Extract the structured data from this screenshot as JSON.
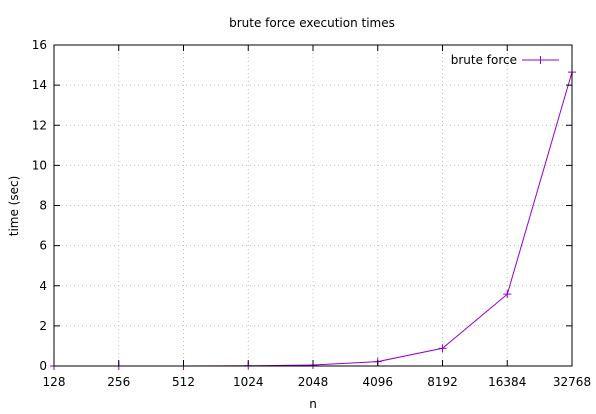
{
  "chart_data": {
    "type": "line",
    "title": "brute force execution times",
    "xlabel": "n",
    "ylabel": "time (sec)",
    "x_scale": "log2",
    "x_ticks": [
      "128",
      "256",
      "512",
      "1024",
      "2048",
      "4096",
      "8192",
      "16384",
      "32768"
    ],
    "xlim": [
      128,
      32768
    ],
    "ylim": [
      0,
      16
    ],
    "y_ticks": [
      "0",
      "2",
      "4",
      "6",
      "8",
      "10",
      "12",
      "14",
      "16"
    ],
    "grid": true,
    "legend_position": "top-right",
    "series": [
      {
        "name": "brute force",
        "color": "#9400d3",
        "marker": "plus",
        "x": [
          128,
          256,
          512,
          1024,
          2048,
          4096,
          8192,
          16384,
          32768
        ],
        "y": [
          0.0,
          0.0,
          0.0,
          0.01,
          0.05,
          0.22,
          0.88,
          3.58,
          14.65
        ]
      }
    ]
  }
}
